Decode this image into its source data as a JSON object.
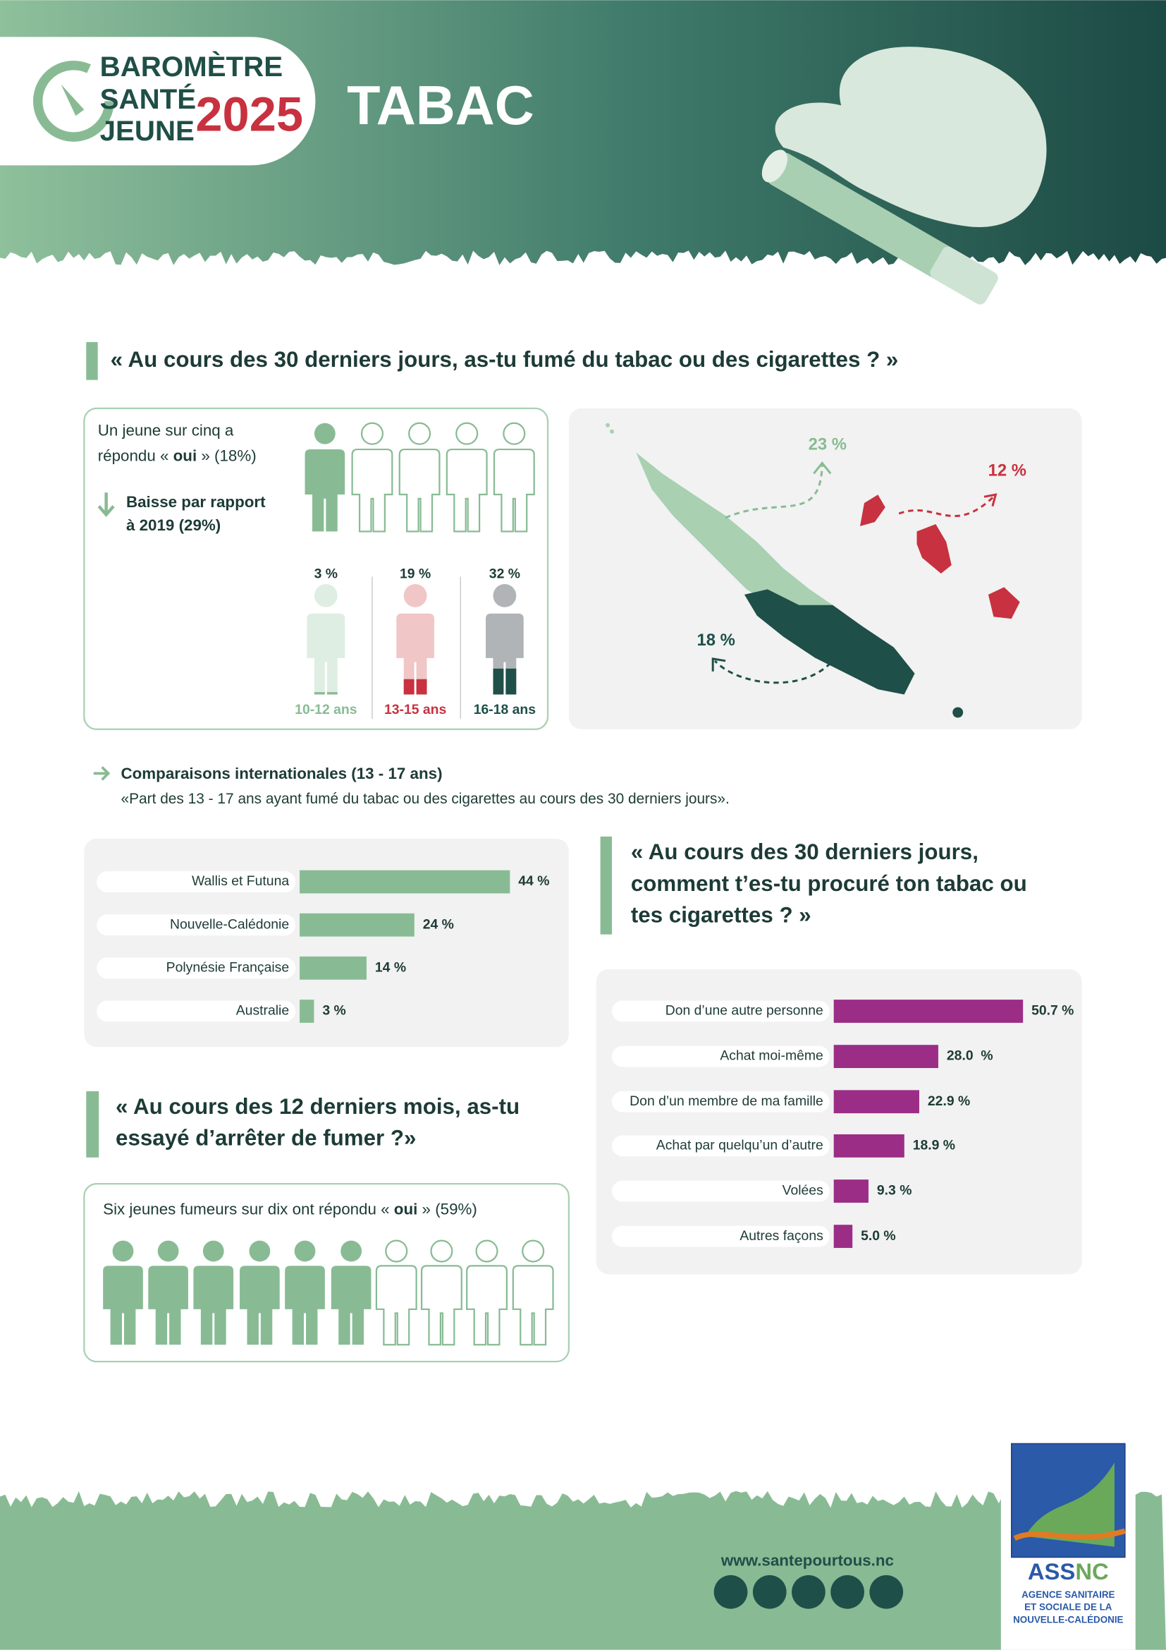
{
  "header": {
    "logo": [
      "BAROMÈTRE",
      "SANTÉ",
      "JEUNE"
    ],
    "year": "2025",
    "title": "TABAC"
  },
  "smoking_30_days": {
    "question": "« Au cours des 30 derniers jours, as-tu fumé du tabac ou des cigarettes ? »",
    "summary_line1": "Un jeune sur cinq a",
    "summary_line2": [
      "répondu « ",
      "oui",
      " » (18%)"
    ],
    "trend": [
      "Baisse par rapport",
      "à 2019 (29%)"
    ],
    "by_age": {
      "type": "figure-fill",
      "categories": [
        "10-12 ans",
        "13-15 ans",
        "16-18 ans"
      ],
      "values": [
        3,
        19,
        32
      ],
      "value_labels": [
        "3 %",
        "19 %",
        "32 %"
      ],
      "colors": [
        "#88bb94",
        "#c8313f",
        "#1e4f48"
      ],
      "ylim": [
        0,
        100
      ]
    },
    "map_labels": [
      "23 %",
      "12 %",
      "18 %"
    ]
  },
  "international": {
    "title": "Comparaisons internationales (13 - 17 ans)",
    "subtitle": "«Part des 13 - 17 ans ayant fumé du tabac ou des cigarettes au cours des 30 derniers jours».",
    "chart": {
      "type": "hbar",
      "categories": [
        "Wallis et Futuna",
        "Nouvelle-Calédonie",
        "Polynésie Française",
        "Australie"
      ],
      "values": [
        44,
        24,
        14,
        3
      ],
      "value_labels": [
        "44 %",
        "24 %",
        "14 %",
        "3 %"
      ],
      "color": "#88bb94"
    }
  },
  "sources": {
    "question": [
      "« Au cours des 30 derniers jours,",
      "comment t’es-tu procuré ton tabac ou",
      "tes cigarettes ? »"
    ],
    "chart": {
      "type": "hbar",
      "categories": [
        "Don d’une autre personne",
        "Achat moi-même",
        "Don d’un membre de ma famille",
        "Achat par quelqu’un d’autre",
        "Volées",
        "Autres façons"
      ],
      "values": [
        50.7,
        28.0,
        22.9,
        18.9,
        9.3,
        5.0
      ],
      "value_labels": [
        "50.7 %",
        "28.0  %",
        "22.9 %",
        "18.9 %",
        "9.3 %",
        "5.0 %"
      ],
      "color": "#9b2d86"
    }
  },
  "quit_attempts": {
    "question": [
      "« Au cours des 12 derniers mois, as-tu",
      "essayé d’arrêter de fumer ?»"
    ],
    "summary": [
      "Six jeunes fumeurs sur dix ont répondu « ",
      "oui",
      " » (59%)"
    ]
  },
  "footer": {
    "url": "www.santepourtous.nc",
    "agency_logo": [
      "ASS",
      "NC"
    ],
    "agency_name": [
      "AGENCE SANITAIRE",
      "ET SOCIALE DE LA",
      "NOUVELLE-CALÉDONIE"
    ]
  }
}
